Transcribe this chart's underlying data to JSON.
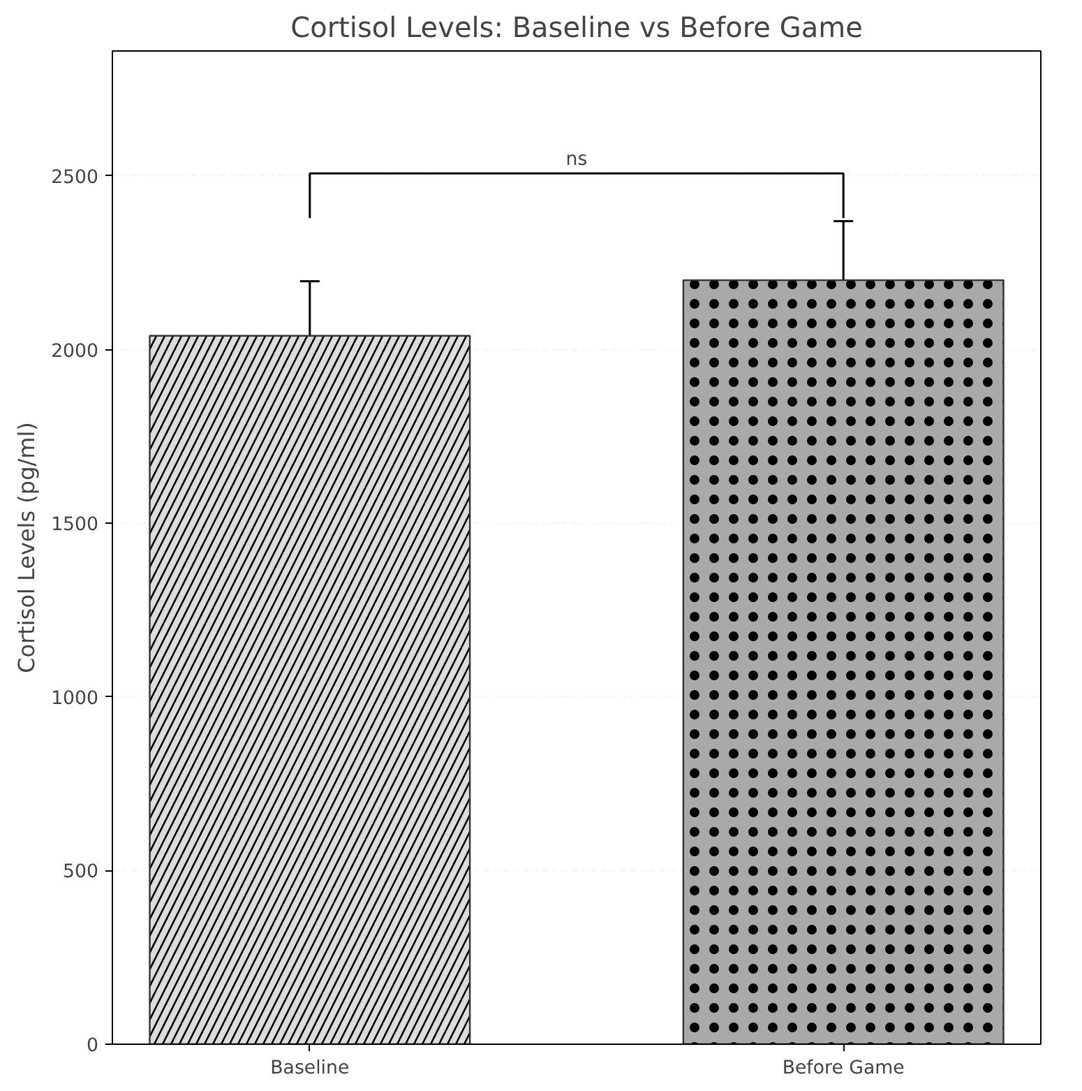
{
  "chart_data": {
    "type": "bar",
    "title": "Cortisol Levels: Baseline vs Before Game",
    "ylabel": "Cortisol Levels (pg/ml)",
    "categories": [
      "Baseline",
      "Before Game"
    ],
    "values": [
      2040,
      2200
    ],
    "colors": [
      "#dcdcdc",
      "#a9a9a9"
    ],
    "errors": [
      157,
      170
    ],
    "ylim": [
      0,
      2860
    ],
    "yticks": [
      0,
      500,
      1000,
      1500,
      2000,
      2500
    ],
    "grid": "y",
    "annotations": [
      "ns"
    ]
  }
}
